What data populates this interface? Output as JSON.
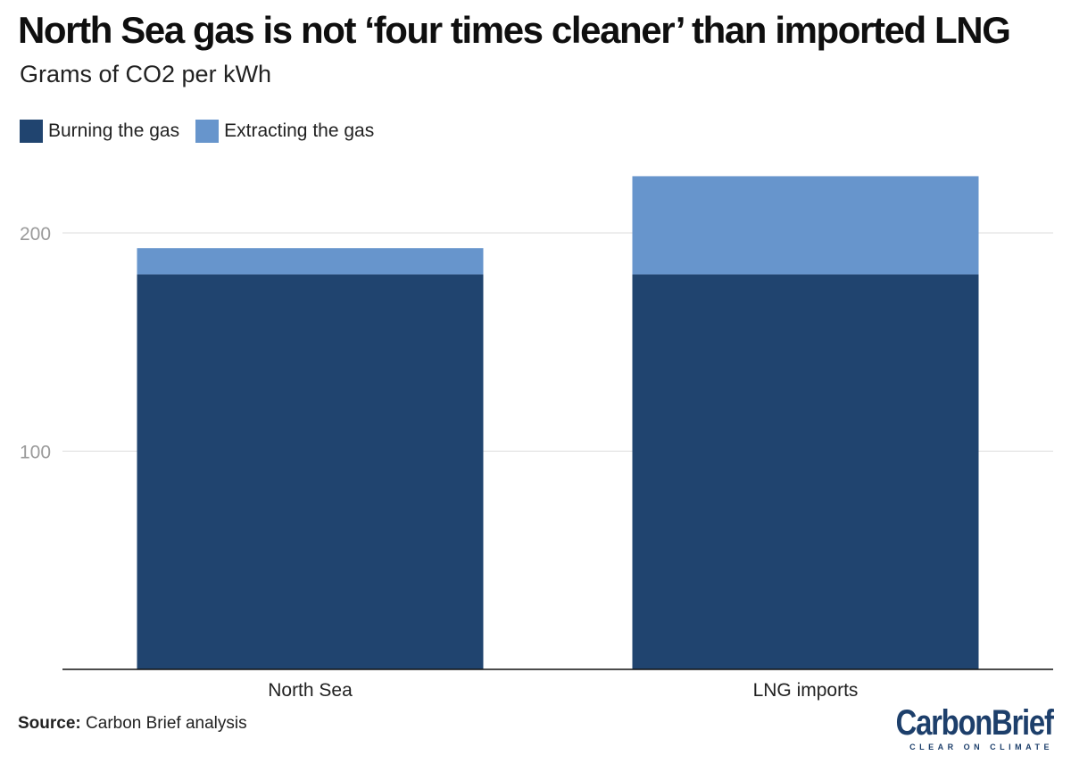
{
  "title": "North Sea gas is not ‘four times cleaner’ than imported LNG",
  "subtitle": "Grams of CO2 per kWh",
  "legend": [
    {
      "label": "Burning the gas",
      "color": "#20446f"
    },
    {
      "label": "Extracting the gas",
      "color": "#6795cc"
    }
  ],
  "source": {
    "label": "Source:",
    "text": "Carbon Brief analysis"
  },
  "logo": {
    "text": "CarbonBrief",
    "tagline": "CLEAR ON CLIMATE"
  },
  "chart_data": {
    "type": "bar",
    "stacked": true,
    "categories": [
      "North Sea",
      "LNG imports"
    ],
    "series": [
      {
        "name": "Burning the gas",
        "values": [
          181,
          181
        ],
        "color": "#20446f"
      },
      {
        "name": "Extracting the gas",
        "values": [
          12,
          45
        ],
        "color": "#6795cc"
      }
    ],
    "title": "North Sea gas is not ‘four times cleaner’ than imported LNG",
    "ylabel": "Grams of CO2 per kWh",
    "yticks": [
      100,
      200
    ],
    "ylim": [
      0,
      230
    ],
    "grid": true,
    "legend_position": "top-left"
  }
}
